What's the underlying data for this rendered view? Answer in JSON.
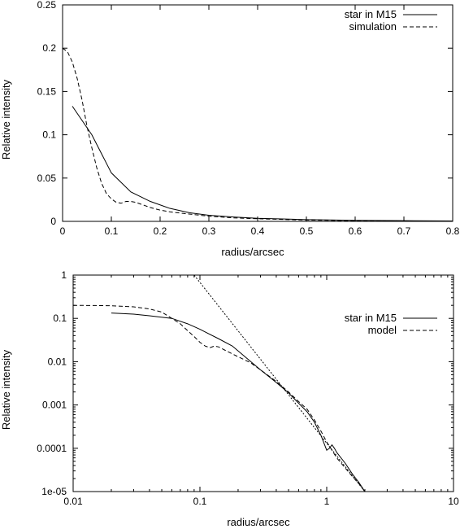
{
  "chart_data": [
    {
      "type": "line",
      "xlabel": "radius/arcsec",
      "ylabel": "Relative intensity",
      "xlim": [
        0,
        0.8
      ],
      "ylim": [
        0,
        0.25
      ],
      "xscale": "linear",
      "yscale": "linear",
      "x_ticks": [
        "0",
        "0.1",
        "0.2",
        "0.3",
        "0.4",
        "0.5",
        "0.6",
        "0.7",
        "0.8"
      ],
      "y_ticks": [
        "0",
        "0.05",
        "0.1",
        "0.15",
        "0.2",
        "0.25"
      ],
      "grid": false,
      "legend_position": "top-right",
      "series": [
        {
          "name": "star in M15",
          "style": "solid",
          "x": [
            0.02,
            0.06,
            0.1,
            0.14,
            0.18,
            0.22,
            0.26,
            0.3,
            0.35,
            0.4,
            0.45,
            0.5,
            0.6,
            0.7,
            0.8
          ],
          "y": [
            0.133,
            0.1,
            0.056,
            0.034,
            0.023,
            0.015,
            0.01,
            0.007,
            0.005,
            0.0035,
            0.0028,
            0.002,
            0.0012,
            0.0008,
            0.0005
          ]
        },
        {
          "name": "simulation",
          "style": "dashed",
          "x": [
            0.0,
            0.01,
            0.02,
            0.03,
            0.04,
            0.05,
            0.06,
            0.07,
            0.08,
            0.09,
            0.1,
            0.11,
            0.12,
            0.13,
            0.14,
            0.15,
            0.16,
            0.18,
            0.2,
            0.22,
            0.25,
            0.3,
            0.35,
            0.4,
            0.5,
            0.6,
            0.7,
            0.8
          ],
          "y": [
            0.2,
            0.196,
            0.184,
            0.165,
            0.14,
            0.11,
            0.085,
            0.062,
            0.044,
            0.032,
            0.026,
            0.022,
            0.021,
            0.023,
            0.023,
            0.022,
            0.02,
            0.016,
            0.013,
            0.011,
            0.009,
            0.006,
            0.004,
            0.003,
            0.0015,
            0.0008,
            0.0005,
            0.0003
          ]
        }
      ]
    },
    {
      "type": "line",
      "xlabel": "radius/arcsec",
      "ylabel": "Relative intensity",
      "xlim": [
        0.01,
        10
      ],
      "ylim": [
        1e-05,
        1
      ],
      "xscale": "log",
      "yscale": "log",
      "x_ticks": [
        "0.01",
        "0.1",
        "1",
        "10"
      ],
      "y_ticks": [
        "1e-05",
        "0.0001",
        "0.001",
        "0.01",
        "0.1",
        "1"
      ],
      "grid": false,
      "legend_position": "right",
      "series": [
        {
          "name": "star in M15",
          "style": "solid",
          "x": [
            0.02,
            0.03,
            0.04,
            0.06,
            0.08,
            0.1,
            0.14,
            0.18,
            0.22,
            0.3,
            0.4,
            0.5,
            0.6,
            0.7,
            0.8,
            0.9,
            1.0,
            1.05,
            1.1,
            1.15,
            1.2,
            1.4,
            1.6,
            1.8,
            2.0
          ],
          "y": [
            0.133,
            0.125,
            0.115,
            0.1,
            0.075,
            0.056,
            0.034,
            0.023,
            0.014,
            0.0065,
            0.0033,
            0.0019,
            0.0011,
            0.0007,
            0.0004,
            0.0002,
            9e-05,
            0.0001,
            0.00012,
            0.0001,
            8e-05,
            4.5e-05,
            2.5e-05,
            1.6e-05,
            1e-05
          ]
        },
        {
          "name": "model",
          "style": "dashed",
          "x": [
            0.01,
            0.015,
            0.02,
            0.03,
            0.04,
            0.05,
            0.06,
            0.07,
            0.08,
            0.09,
            0.1,
            0.11,
            0.12,
            0.13,
            0.14,
            0.16,
            0.2,
            0.25,
            0.3,
            0.4,
            0.5,
            0.6,
            0.7,
            0.8,
            0.9,
            1.0,
            1.2,
            1.4,
            1.6,
            1.8,
            2.0
          ],
          "y": [
            0.2,
            0.198,
            0.196,
            0.185,
            0.165,
            0.14,
            0.1,
            0.075,
            0.052,
            0.038,
            0.028,
            0.023,
            0.021,
            0.023,
            0.022,
            0.018,
            0.013,
            0.0095,
            0.0065,
            0.0035,
            0.002,
            0.0012,
            0.0008,
            0.00045,
            0.00025,
            0.00014,
            6e-05,
            3.5e-05,
            2.2e-05,
            1.5e-05,
            1e-05
          ]
        },
        {
          "name": "",
          "style": "dotted",
          "x": [
            0.09,
            2.0
          ],
          "y": [
            1.0,
            1e-05
          ]
        }
      ]
    }
  ]
}
